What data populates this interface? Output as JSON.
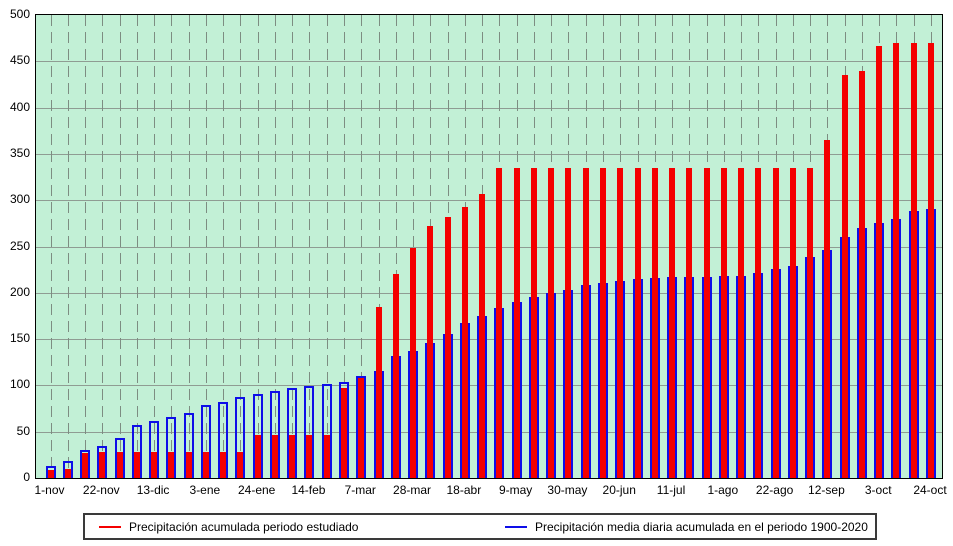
{
  "legend": {
    "items": [
      {
        "label": "Precipitación acumulada periodo estudiado",
        "color": "#f40000"
      },
      {
        "label": "Precipitación media diaria acumulada en el periodo 1900-2020",
        "color": "#0e0ee8"
      }
    ]
  },
  "chart_data": {
    "type": "bar",
    "title": "",
    "xlabel": "",
    "ylabel": "",
    "ylim": [
      0,
      500
    ],
    "ytick_step": 50,
    "yticks": [
      0,
      50,
      100,
      150,
      200,
      250,
      300,
      350,
      400,
      450,
      500
    ],
    "x_tick_labels": [
      "1-nov",
      "22-nov",
      "13-dic",
      "3-ene",
      "24-ene",
      "14-feb",
      "7-mar",
      "28-mar",
      "18-abr",
      "9-may",
      "30-may",
      "20-jun",
      "11-jul",
      "1-ago",
      "22-ago",
      "12-sep",
      "3-oct",
      "24-oct"
    ],
    "x_label_every": 3,
    "n_bars": 52,
    "bar_period": "weekly",
    "grid": {
      "horizontal": "solid",
      "vertical": "dashed"
    },
    "legend_position": "bottom",
    "plot_bg": "#c2f0d6",
    "grid_color": "#8f9c93",
    "series": [
      {
        "name": "Precipitación acumulada periodo estudiado",
        "color": "#f40000",
        "style": "solid",
        "values": [
          9,
          10,
          27,
          28,
          28,
          28,
          28,
          28,
          28,
          28,
          28,
          28,
          46,
          46,
          46,
          46,
          46,
          97,
          108,
          185,
          220,
          248,
          272,
          282,
          293,
          307,
          335,
          335,
          335,
          335,
          335,
          335,
          335,
          335,
          335,
          335,
          335,
          335,
          335,
          335,
          335,
          335,
          335,
          335,
          335,
          365,
          435,
          440,
          467,
          470,
          470,
          470
        ]
      },
      {
        "name": "Precipitación media diaria acumulada en el periodo 1900-2020",
        "color": "#0e0ee8",
        "style": "hollow-outline",
        "values": [
          13,
          18,
          30,
          35,
          43,
          57,
          62,
          66,
          70,
          79,
          82,
          87,
          91,
          94,
          97,
          99,
          102,
          104,
          110,
          116,
          132,
          137,
          146,
          156,
          167,
          175,
          184,
          190,
          195,
          200,
          203,
          208,
          211,
          213,
          215,
          216,
          217,
          217,
          217,
          218,
          218,
          221,
          226,
          229,
          239,
          246,
          260,
          270,
          275,
          280,
          288,
          291
        ]
      }
    ]
  }
}
